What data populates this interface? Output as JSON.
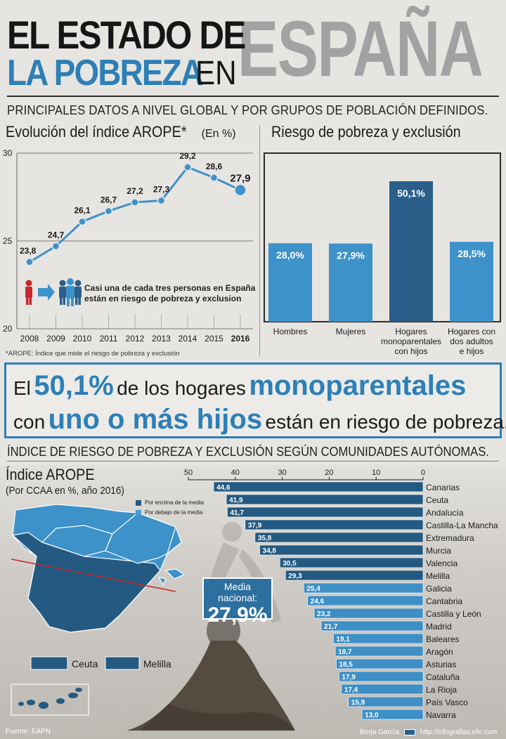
{
  "header": {
    "title_line1": "EL ESTADO DE",
    "title_line2": "LA POBREZA",
    "title_en": "EN",
    "title_country": "ESPAÑA",
    "subtitle": "PRINCIPALES DATOS A NIVEL GLOBAL Y POR GRUPOS DE POBLACIÓN DEFINIDOS."
  },
  "line_section": {
    "title": "Evolución del índice AROPE*",
    "unit": "(En %)",
    "note": "Casi una de cada tres personas en España están en riesgo de pobreza y exclusion",
    "footnote": "*AROPE: Índice que mide el riesgo de pobreza y exclusión"
  },
  "bar_section": {
    "title": "Riesgo de pobreza y exclusión"
  },
  "highlight": {
    "part1": "El",
    "part2": "50,1%",
    "part3": "de los hogares",
    "part4": "monoparentales",
    "part5": "con",
    "part6": "uno o más hijos",
    "part7": "están en riesgo de pobreza."
  },
  "regional_section": {
    "title": "ÍNDICE DE RIESGO DE POBREZA Y EXCLUSIÓN SEGÚN COMUNIDADES AUTÓNOMAS.",
    "chart_title": "Índice AROPE",
    "chart_subtitle": "(Por CCAA en %, año 2016)",
    "legend_above": "Por encima de la media",
    "legend_below": "Por debajo de la media",
    "map_label_ceuta": "Ceuta",
    "map_label_melilla": "Melilla",
    "media_label": "Media nacional:",
    "media_value": "27,9%"
  },
  "footer": {
    "source": "Fuente: EAPN",
    "author": "Borja García",
    "url": "http://infografias.efe.com"
  },
  "colors": {
    "accent_blue": "#2d7fb7",
    "dark_blue": "#2b5f8a",
    "light_blue": "#3d92c9",
    "above_media": "#245a82",
    "below_media": "#4a9bd0"
  },
  "chart_data": [
    {
      "type": "line",
      "x": [
        "2008",
        "2009",
        "2010",
        "2011",
        "2012",
        "2013",
        "2014",
        "2015",
        "2016"
      ],
      "values": [
        23.8,
        24.7,
        26.1,
        26.7,
        27.2,
        27.3,
        29.2,
        28.6,
        27.9
      ],
      "labels": [
        "23,8",
        "24,7",
        "26,1",
        "26,7",
        "27,2",
        "27,3",
        "29,2",
        "28,6",
        "27,9"
      ],
      "yticks": [
        "30",
        "25",
        "20"
      ],
      "ylim": [
        20,
        30
      ],
      "title": "Evolución del índice AROPE*",
      "ylabel": "(En %)"
    },
    {
      "type": "bar",
      "categories": [
        "Hombres",
        "Mujeres",
        "Hogares monoparentales con hijos",
        "Hogares con dos adultos e hijos"
      ],
      "values": [
        28.0,
        27.9,
        50.1,
        28.5
      ],
      "labels": [
        "28,0%",
        "27,9%",
        "50,1%",
        "28,5%"
      ],
      "title": "Riesgo de pobreza y exclusión"
    },
    {
      "type": "bar",
      "orientation": "horizontal",
      "categories": [
        "Canarias",
        "Ceuta",
        "Andalucía",
        "Castilla-La Mancha",
        "Extremadura",
        "Murcia",
        "Valencia",
        "Melilla",
        "Galicia",
        "Cantabria",
        "Castilla y León",
        "Madrid",
        "Baleares",
        "Aragón",
        "Asturias",
        "Cataluña",
        "La Rioja",
        "País Vasco",
        "Navarra"
      ],
      "values": [
        44.6,
        41.9,
        41.7,
        37.9,
        35.8,
        34.8,
        30.5,
        29.3,
        25.4,
        24.6,
        23.2,
        21.7,
        19.1,
        18.7,
        18.5,
        17.9,
        17.4,
        15.9,
        13.0
      ],
      "labels": [
        "44,6",
        "41,9",
        "41,7",
        "37,9",
        "35,8",
        "34,8",
        "30,5",
        "29,3",
        "25,4",
        "24,6",
        "23,2",
        "21,7",
        "19,1",
        "18,7",
        "18,5",
        "17,9",
        "17,4",
        "15,9",
        "13,0"
      ],
      "xticks": [
        "50",
        "40",
        "30",
        "20",
        "10",
        "0"
      ],
      "xlim": [
        0,
        50
      ],
      "reference_line": 27.9,
      "title": "Índice AROPE",
      "subtitle": "(Por CCAA en %, año 2016)",
      "legend": [
        "Por encima de la media",
        "Por debajo de la media"
      ]
    }
  ]
}
